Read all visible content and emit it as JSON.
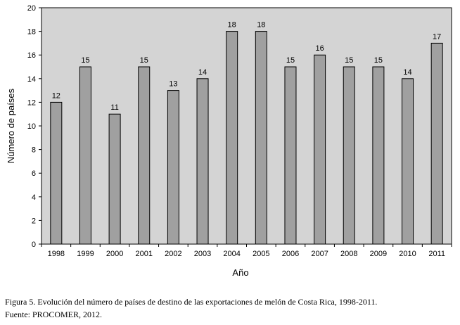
{
  "chart_data": {
    "type": "bar",
    "categories": [
      "1998",
      "1999",
      "2000",
      "2001",
      "2002",
      "2003",
      "2004",
      "2005",
      "2006",
      "2007",
      "2008",
      "2009",
      "2010",
      "2011"
    ],
    "values": [
      12,
      15,
      11,
      15,
      13,
      14,
      18,
      18,
      15,
      16,
      15,
      15,
      14,
      17
    ],
    "data_labels": [
      "12",
      "15",
      "11",
      "15",
      "13",
      "14",
      "18",
      "18",
      "15",
      "16",
      "15",
      "15",
      "14",
      "17"
    ],
    "xlabel": "Año",
    "ylabel": "Número de países",
    "ylim": [
      0,
      20
    ],
    "yticks": [
      0,
      2,
      4,
      6,
      8,
      10,
      12,
      14,
      16,
      18,
      20
    ],
    "grid": false,
    "legend": "none",
    "colors": {
      "bar": "#a0a0a0",
      "plot_bg": "#d4d4d4",
      "bar_stroke": "#000000"
    }
  },
  "caption": {
    "line1": "Figura 5. Evolución del número de países de destino de las exportaciones de melón de Costa Rica, 1998-2011.",
    "line2": "Fuente: PROCOMER, 2012."
  }
}
